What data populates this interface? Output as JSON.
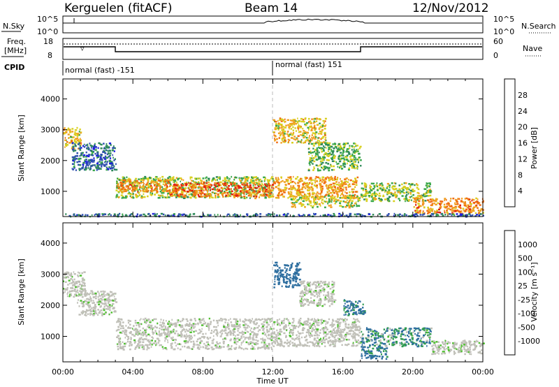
{
  "header": {
    "station": "Kerguelen (fitACF)",
    "beam": "Beam 14",
    "date": "12/Nov/2012"
  },
  "top_panels": {
    "nsky": {
      "label": "N.Sky",
      "ticks_left": [
        "10^5",
        "10^0"
      ],
      "right_label": "N.Search",
      "ticks_right": [
        "10^5",
        "10^0"
      ]
    },
    "freq": {
      "label_line1": "Freq.",
      "label_line2": "[MHz]",
      "ticks_left": [
        "18",
        "8"
      ],
      "right_label": "Nave",
      "ticks_right": [
        "60",
        "0"
      ]
    },
    "cpid": {
      "label": "CPID",
      "segments": [
        {
          "text": "normal (fast) -151",
          "start_hour": 0
        },
        {
          "text": "normal (fast) 151",
          "start_hour": 12
        }
      ]
    }
  },
  "chart_data": [
    {
      "type": "heatmap",
      "ylabel": "Slant Range [km]",
      "xlabel": "Time UT",
      "x_ticks": [
        "00:00",
        "04:00",
        "08:00",
        "12:00",
        "16:00",
        "20:00",
        "00:00"
      ],
      "xlim_hours": [
        0,
        24
      ],
      "y_ticks": [
        1000,
        2000,
        3000,
        4000
      ],
      "ylim": [
        180,
        4650
      ],
      "colorbar": {
        "label": "Power [dB]",
        "ticks": [
          4,
          8,
          12,
          16,
          20,
          24,
          28
        ],
        "colors": [
          "#1c1ce0",
          "#2f4fb0",
          "#2f8a5a",
          "#3aa84a",
          "#d8d020",
          "#f0a020",
          "#f06a10",
          "#e02010"
        ]
      },
      "regions": [
        {
          "h0": 0.0,
          "h1": 1.0,
          "r0": 2400,
          "r1": 3100,
          "val": 20
        },
        {
          "h0": 0.5,
          "h1": 3.0,
          "r0": 1700,
          "r1": 2600,
          "val": 8
        },
        {
          "h0": 3.0,
          "h1": 12.0,
          "r0": 800,
          "r1": 1500,
          "val": 16
        },
        {
          "h0": 3.0,
          "h1": 6.0,
          "r0": 1000,
          "r1": 1400,
          "val": 24
        },
        {
          "h0": 6.0,
          "h1": 12.0,
          "r0": 850,
          "r1": 1300,
          "val": 26
        },
        {
          "h0": 12.0,
          "h1": 16.8,
          "r0": 800,
          "r1": 1500,
          "val": 22
        },
        {
          "h0": 12.0,
          "h1": 15.0,
          "r0": 2600,
          "r1": 3400,
          "val": 20
        },
        {
          "h0": 14.0,
          "h1": 17.0,
          "r0": 1700,
          "r1": 2600,
          "val": 14
        },
        {
          "h0": 13.0,
          "h1": 17.0,
          "r0": 500,
          "r1": 900,
          "val": 18
        },
        {
          "h0": 17.0,
          "h1": 21.0,
          "r0": 700,
          "r1": 1300,
          "val": 16
        },
        {
          "h0": 20.0,
          "h1": 24.0,
          "r0": 300,
          "r1": 800,
          "val": 24
        },
        {
          "h0": 0.0,
          "h1": 24.0,
          "r0": 200,
          "r1": 300,
          "val": 8
        }
      ]
    },
    {
      "type": "heatmap",
      "ylabel": "Slant Range [km]",
      "xlabel": "Time UT",
      "x_ticks": [
        "00:00",
        "04:00",
        "08:00",
        "12:00",
        "16:00",
        "20:00",
        "00:00"
      ],
      "xlim_hours": [
        0,
        24
      ],
      "y_ticks": [
        1000,
        2000,
        3000,
        4000
      ],
      "ylim": [
        180,
        4650
      ],
      "colorbar": {
        "label": "Velocity [m s⁻¹]",
        "ticks": [
          1000,
          500,
          100,
          25,
          -25,
          -100,
          -500,
          -1000
        ],
        "colors": [
          "#2040b0",
          "#2f6fa0",
          "#2f9a50",
          "#50c030",
          "#c0c0b8",
          "#c0c0b8",
          "#f0a020",
          "#f06010",
          "#e01010"
        ]
      },
      "regions": [
        {
          "h0": 0.0,
          "h1": 1.2,
          "r0": 2300,
          "r1": 3100,
          "val": 0
        },
        {
          "h0": 0.8,
          "h1": 3.0,
          "r0": 1700,
          "r1": 2500,
          "val": 0
        },
        {
          "h0": 3.0,
          "h1": 12.0,
          "r0": 600,
          "r1": 1600,
          "val": 0
        },
        {
          "h0": 12.0,
          "h1": 17.0,
          "r0": 700,
          "r1": 1600,
          "val": 0
        },
        {
          "h0": 12.0,
          "h1": 13.5,
          "r0": 2600,
          "r1": 3400,
          "val": 200
        },
        {
          "h0": 13.5,
          "h1": 15.5,
          "r0": 2000,
          "r1": 2800,
          "val": 0
        },
        {
          "h0": 16.0,
          "h1": 17.2,
          "r0": 1700,
          "r1": 2200,
          "val": 150
        },
        {
          "h0": 17.0,
          "h1": 21.0,
          "r0": 700,
          "r1": 1300,
          "val": 80
        },
        {
          "h0": 21.0,
          "h1": 24.0,
          "r0": 450,
          "r1": 900,
          "val": 0
        },
        {
          "h0": 17.0,
          "h1": 18.5,
          "r0": 300,
          "r1": 700,
          "val": 150
        }
      ]
    }
  ]
}
